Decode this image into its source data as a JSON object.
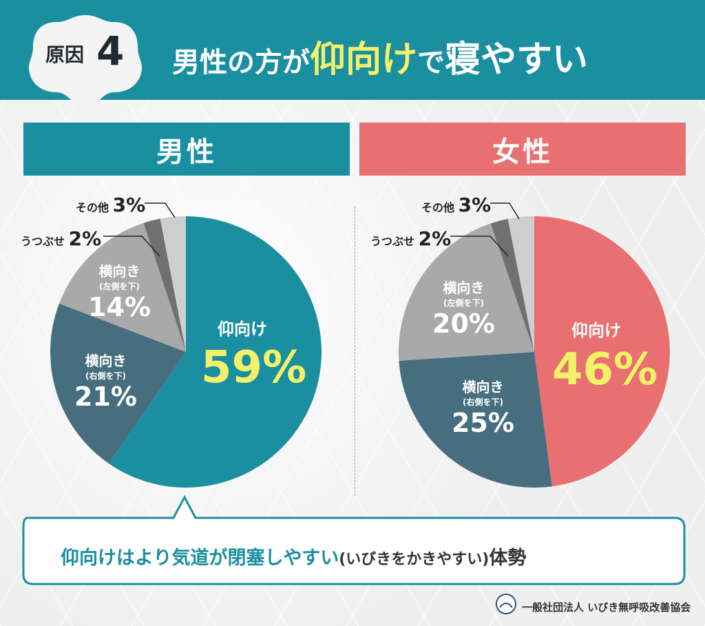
{
  "header": {
    "badge_label": "原因",
    "badge_number": "4",
    "title_part1": "男性の方が",
    "title_part2": "仰向け",
    "title_part3": "で",
    "title_part4": "寝やすい"
  },
  "colors": {
    "teal": "#1a8fa0",
    "pink": "#e87070",
    "dark_slate": "#476e7f",
    "gray": "#a9a9a9",
    "dark_gray": "#707070",
    "light_gray": "#cfcfcf",
    "highlight_yellow": "#f3f06a"
  },
  "chart_data": [
    {
      "type": "pie",
      "title": "男性",
      "slices": [
        {
          "label": "仰向け",
          "value": 59
        },
        {
          "label": "横向き (右側を下)",
          "value": 21
        },
        {
          "label": "横向き (左側を下)",
          "value": 14
        },
        {
          "label": "うつぶせ",
          "value": 2
        },
        {
          "label": "その他",
          "value": 3
        }
      ]
    },
    {
      "type": "pie",
      "title": "女性",
      "slices": [
        {
          "label": "仰向け",
          "value": 46
        },
        {
          "label": "横向き (右側を下)",
          "value": 25
        },
        {
          "label": "横向き (左側を下)",
          "value": 20
        },
        {
          "label": "うつぶせ",
          "value": 2
        },
        {
          "label": "その他",
          "value": 3
        }
      ]
    }
  ],
  "labels": {
    "male": {
      "supine": "仰向け",
      "supine_pct": "59%",
      "right": "横向き",
      "right_sub": "(右側を下)",
      "right_pct": "21%",
      "left": "横向き",
      "left_sub": "(左側を下)",
      "left_pct": "14%",
      "prone": "うつぶせ",
      "prone_pct": "2%",
      "other": "その他",
      "other_pct": "3%"
    },
    "female": {
      "supine": "仰向け",
      "supine_pct": "46%",
      "right": "横向き",
      "right_sub": "(右側を下)",
      "right_pct": "25%",
      "left": "横向き",
      "left_sub": "(左側を下)",
      "left_pct": "20%",
      "prone": "うつぶせ",
      "prone_pct": "2%",
      "other": "その他",
      "other_pct": "3%"
    }
  },
  "callout": {
    "main": "仰向けはより気道が閉塞しやすい",
    "paren": "(いびきをかきやすい)",
    "tail": "体勢"
  },
  "footer": {
    "org": "一般社団法人 いびき無呼吸改善協会"
  }
}
